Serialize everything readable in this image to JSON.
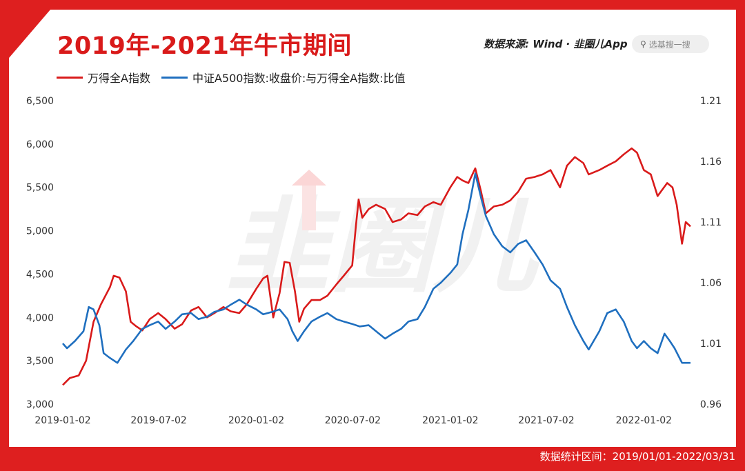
{
  "header": {
    "title": "2019年-2021年牛市期间",
    "source_label": "数据来源: Wind ·",
    "app_brand": "韭圈儿App",
    "search_placeholder": "选基搜一搜"
  },
  "footer": {
    "stat_range": "数据统计区间：2019/01/01-2022/03/31"
  },
  "colors": {
    "frame": "#de1f1f",
    "series_left": "#d91a1a",
    "series_right": "#1f6fbf"
  },
  "watermark": {
    "text": "韭圈儿"
  },
  "chart_data": {
    "type": "line",
    "title": "2019年-2021年牛市期间",
    "x_ticks": [
      "2019-01-02",
      "2019-07-02",
      "2020-01-02",
      "2020-07-02",
      "2021-01-02",
      "2021-07-02",
      "2022-01-02"
    ],
    "y_left": {
      "range": [
        3000,
        6500
      ],
      "ticks": [
        "3,000",
        "3,500",
        "4,000",
        "4,500",
        "5,000",
        "5,500",
        "6,000",
        "6,500"
      ]
    },
    "y_right": {
      "range": [
        0.96,
        1.21
      ],
      "ticks": [
        "0.96",
        "1.01",
        "1.06",
        "1.11",
        "1.16",
        "1.21"
      ]
    },
    "x_range": [
      "2019-01-02",
      "2022-03-31"
    ],
    "legend": "top-left",
    "grid": false,
    "series": [
      {
        "name": "万得全A指数",
        "axis": "left",
        "points": [
          [
            "2019-01-02",
            3220
          ],
          [
            "2019-01-15",
            3300
          ],
          [
            "2019-02-01",
            3330
          ],
          [
            "2019-02-15",
            3500
          ],
          [
            "2019-03-01",
            3950
          ],
          [
            "2019-03-15",
            4150
          ],
          [
            "2019-04-01",
            4350
          ],
          [
            "2019-04-08",
            4480
          ],
          [
            "2019-04-19",
            4460
          ],
          [
            "2019-05-01",
            4300
          ],
          [
            "2019-05-10",
            3950
          ],
          [
            "2019-05-20",
            3900
          ],
          [
            "2019-06-01",
            3850
          ],
          [
            "2019-06-15",
            3980
          ],
          [
            "2019-07-01",
            4050
          ],
          [
            "2019-07-15",
            3980
          ],
          [
            "2019-08-01",
            3870
          ],
          [
            "2019-08-15",
            3920
          ],
          [
            "2019-09-01",
            4080
          ],
          [
            "2019-09-15",
            4120
          ],
          [
            "2019-10-01",
            4000
          ],
          [
            "2019-10-15",
            4050
          ],
          [
            "2019-11-01",
            4120
          ],
          [
            "2019-11-15",
            4070
          ],
          [
            "2019-12-01",
            4050
          ],
          [
            "2019-12-15",
            4150
          ],
          [
            "2020-01-02",
            4330
          ],
          [
            "2020-01-15",
            4450
          ],
          [
            "2020-01-23",
            4480
          ],
          [
            "2020-02-03",
            4000
          ],
          [
            "2020-02-15",
            4280
          ],
          [
            "2020-02-24",
            4640
          ],
          [
            "2020-03-05",
            4630
          ],
          [
            "2020-03-15",
            4300
          ],
          [
            "2020-03-23",
            3950
          ],
          [
            "2020-04-01",
            4100
          ],
          [
            "2020-04-15",
            4200
          ],
          [
            "2020-05-01",
            4200
          ],
          [
            "2020-05-15",
            4250
          ],
          [
            "2020-06-01",
            4380
          ],
          [
            "2020-06-15",
            4480
          ],
          [
            "2020-07-01",
            4600
          ],
          [
            "2020-07-08",
            5060
          ],
          [
            "2020-07-13",
            5360
          ],
          [
            "2020-07-20",
            5150
          ],
          [
            "2020-08-01",
            5250
          ],
          [
            "2020-08-15",
            5300
          ],
          [
            "2020-09-01",
            5250
          ],
          [
            "2020-09-15",
            5100
          ],
          [
            "2020-10-01",
            5130
          ],
          [
            "2020-10-15",
            5200
          ],
          [
            "2020-11-01",
            5180
          ],
          [
            "2020-11-15",
            5280
          ],
          [
            "2020-12-01",
            5330
          ],
          [
            "2020-12-15",
            5300
          ],
          [
            "2021-01-02",
            5500
          ],
          [
            "2021-01-15",
            5620
          ],
          [
            "2021-01-25",
            5580
          ],
          [
            "2021-02-05",
            5550
          ],
          [
            "2021-02-18",
            5720
          ],
          [
            "2021-03-01",
            5450
          ],
          [
            "2021-03-10",
            5200
          ],
          [
            "2021-03-25",
            5280
          ],
          [
            "2021-04-10",
            5300
          ],
          [
            "2021-04-25",
            5350
          ],
          [
            "2021-05-10",
            5450
          ],
          [
            "2021-05-25",
            5600
          ],
          [
            "2021-06-10",
            5620
          ],
          [
            "2021-06-25",
            5650
          ],
          [
            "2021-07-10",
            5700
          ],
          [
            "2021-07-28",
            5500
          ],
          [
            "2021-08-10",
            5750
          ],
          [
            "2021-08-25",
            5850
          ],
          [
            "2021-09-10",
            5780
          ],
          [
            "2021-09-20",
            5650
          ],
          [
            "2021-10-10",
            5700
          ],
          [
            "2021-10-25",
            5750
          ],
          [
            "2021-11-10",
            5800
          ],
          [
            "2021-11-25",
            5880
          ],
          [
            "2021-12-10",
            5950
          ],
          [
            "2021-12-20",
            5900
          ],
          [
            "2022-01-02",
            5700
          ],
          [
            "2022-01-15",
            5650
          ],
          [
            "2022-01-28",
            5400
          ],
          [
            "2022-02-15",
            5550
          ],
          [
            "2022-02-25",
            5500
          ],
          [
            "2022-03-05",
            5300
          ],
          [
            "2022-03-15",
            4850
          ],
          [
            "2022-03-22",
            5100
          ],
          [
            "2022-03-31",
            5050
          ]
        ]
      },
      {
        "name": "中证A500指数:收盘价:与万得全A指数:比值",
        "axis": "right",
        "points": [
          [
            "2019-01-02",
            1.01
          ],
          [
            "2019-01-10",
            1.006
          ],
          [
            "2019-01-25",
            1.012
          ],
          [
            "2019-02-10",
            1.02
          ],
          [
            "2019-02-20",
            1.04
          ],
          [
            "2019-03-01",
            1.038
          ],
          [
            "2019-03-12",
            1.025
          ],
          [
            "2019-03-20",
            1.002
          ],
          [
            "2019-04-01",
            0.998
          ],
          [
            "2019-04-15",
            0.994
          ],
          [
            "2019-05-01",
            1.005
          ],
          [
            "2019-05-15",
            1.012
          ],
          [
            "2019-06-01",
            1.022
          ],
          [
            "2019-06-15",
            1.025
          ],
          [
            "2019-07-01",
            1.028
          ],
          [
            "2019-07-15",
            1.022
          ],
          [
            "2019-08-01",
            1.028
          ],
          [
            "2019-08-15",
            1.034
          ],
          [
            "2019-09-01",
            1.035
          ],
          [
            "2019-09-15",
            1.03
          ],
          [
            "2019-10-01",
            1.032
          ],
          [
            "2019-10-15",
            1.036
          ],
          [
            "2019-11-01",
            1.038
          ],
          [
            "2019-11-15",
            1.042
          ],
          [
            "2019-12-01",
            1.046
          ],
          [
            "2019-12-15",
            1.042
          ],
          [
            "2020-01-02",
            1.038
          ],
          [
            "2020-01-15",
            1.034
          ],
          [
            "2020-02-01",
            1.036
          ],
          [
            "2020-02-15",
            1.038
          ],
          [
            "2020-03-01",
            1.03
          ],
          [
            "2020-03-10",
            1.02
          ],
          [
            "2020-03-20",
            1.012
          ],
          [
            "2020-04-01",
            1.02
          ],
          [
            "2020-04-15",
            1.028
          ],
          [
            "2020-05-01",
            1.032
          ],
          [
            "2020-05-15",
            1.035
          ],
          [
            "2020-06-01",
            1.03
          ],
          [
            "2020-06-15",
            1.028
          ],
          [
            "2020-07-01",
            1.026
          ],
          [
            "2020-07-15",
            1.024
          ],
          [
            "2020-08-01",
            1.025
          ],
          [
            "2020-08-15",
            1.02
          ],
          [
            "2020-09-01",
            1.014
          ],
          [
            "2020-09-15",
            1.018
          ],
          [
            "2020-10-01",
            1.022
          ],
          [
            "2020-10-15",
            1.028
          ],
          [
            "2020-11-01",
            1.03
          ],
          [
            "2020-11-15",
            1.04
          ],
          [
            "2020-12-01",
            1.055
          ],
          [
            "2020-12-15",
            1.06
          ],
          [
            "2021-01-02",
            1.068
          ],
          [
            "2021-01-15",
            1.075
          ],
          [
            "2021-01-25",
            1.1
          ],
          [
            "2021-02-05",
            1.12
          ],
          [
            "2021-02-18",
            1.15
          ],
          [
            "2021-03-01",
            1.13
          ],
          [
            "2021-03-10",
            1.115
          ],
          [
            "2021-03-25",
            1.1
          ],
          [
            "2021-04-10",
            1.09
          ],
          [
            "2021-04-25",
            1.085
          ],
          [
            "2021-05-10",
            1.092
          ],
          [
            "2021-05-25",
            1.095
          ],
          [
            "2021-06-10",
            1.085
          ],
          [
            "2021-06-25",
            1.075
          ],
          [
            "2021-07-10",
            1.062
          ],
          [
            "2021-07-28",
            1.055
          ],
          [
            "2021-08-10",
            1.04
          ],
          [
            "2021-08-25",
            1.025
          ],
          [
            "2021-09-10",
            1.012
          ],
          [
            "2021-09-20",
            1.005
          ],
          [
            "2021-10-10",
            1.02
          ],
          [
            "2021-10-25",
            1.035
          ],
          [
            "2021-11-10",
            1.038
          ],
          [
            "2021-11-25",
            1.028
          ],
          [
            "2021-12-10",
            1.012
          ],
          [
            "2021-12-20",
            1.006
          ],
          [
            "2022-01-02",
            1.012
          ],
          [
            "2022-01-15",
            1.006
          ],
          [
            "2022-01-28",
            1.002
          ],
          [
            "2022-02-10",
            1.018
          ],
          [
            "2022-02-20",
            1.012
          ],
          [
            "2022-03-01",
            1.006
          ],
          [
            "2022-03-15",
            0.994
          ],
          [
            "2022-03-25",
            0.994
          ],
          [
            "2022-03-31",
            0.994
          ]
        ]
      }
    ]
  }
}
